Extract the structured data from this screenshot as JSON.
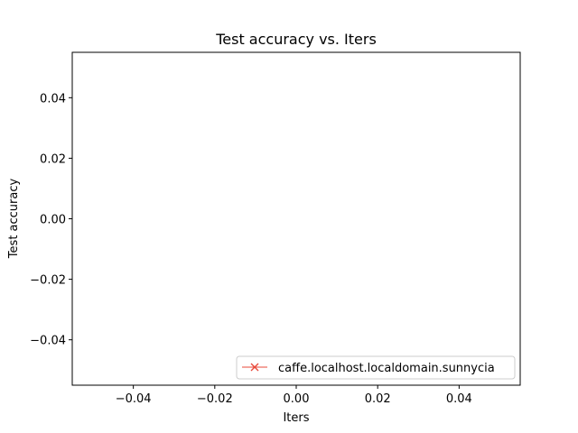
{
  "chart_data": {
    "type": "line",
    "title": "Test accuracy  vs. Iters",
    "xlabel": "Iters",
    "ylabel": "Test accuracy",
    "xlim": [
      -0.055,
      0.055
    ],
    "ylim": [
      -0.055,
      0.055
    ],
    "x_ticks": [
      -0.04,
      -0.02,
      0.0,
      0.02,
      0.04
    ],
    "y_ticks": [
      -0.04,
      -0.02,
      0.0,
      0.02,
      0.04
    ],
    "x_tick_labels": [
      "−0.04",
      "−0.02",
      "0.00",
      "0.02",
      "0.04"
    ],
    "y_tick_labels": [
      "−0.04",
      "−0.02",
      "0.00",
      "0.02",
      "0.04"
    ],
    "grid": false,
    "legend_position": "lower right",
    "series": [
      {
        "name": "caffe.localhost.localdomain.sunnycia",
        "color": "#e8483a",
        "marker": "x",
        "x": [],
        "y": []
      }
    ]
  }
}
